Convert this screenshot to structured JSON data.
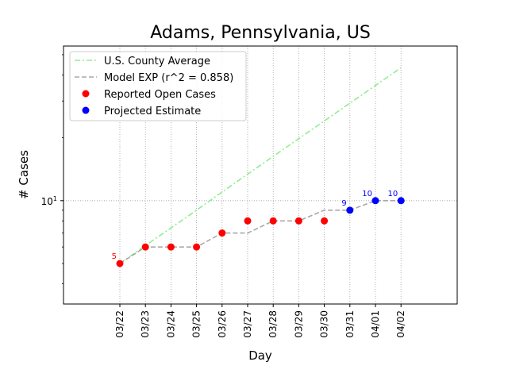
{
  "chart_data": {
    "type": "line",
    "title": "Adams, Pennsylvania, US",
    "xlabel": "Day",
    "ylabel": "# Cases",
    "yscale": "log",
    "ylim": [
      3.2,
      55
    ],
    "y_tick_label": "10",
    "y_tick_value": 10,
    "grid": true,
    "legend_position": "upper left",
    "categories": [
      "03/22",
      "03/23",
      "03/24",
      "03/25",
      "03/26",
      "03/27",
      "03/28",
      "03/29",
      "03/30",
      "03/31",
      "04/01",
      "04/02"
    ],
    "series": [
      {
        "name": "U.S. County Average",
        "style": "dash-dot",
        "color": "#90ee90",
        "values": [
          5,
          6.1,
          7.4,
          9.0,
          11.0,
          13.4,
          16.3,
          19.8,
          24.1,
          29.3,
          35.6,
          43.3
        ]
      },
      {
        "name": "Model EXP (r^2 = 0.858)",
        "style": "dashed",
        "color": "#a9a9a9",
        "values": [
          5,
          6,
          6,
          6,
          7,
          7,
          8,
          8,
          9,
          9,
          10,
          10
        ]
      },
      {
        "name": "Reported Open Cases",
        "style": "marker",
        "color": "#ff0000",
        "values": [
          5,
          6,
          6,
          6,
          7,
          8,
          8,
          8,
          8,
          null,
          null,
          null
        ]
      },
      {
        "name": "Projected Estimate",
        "style": "marker",
        "color": "#0000ff",
        "values": [
          null,
          null,
          null,
          null,
          null,
          null,
          null,
          null,
          null,
          9,
          10,
          10
        ]
      }
    ],
    "annotations": [
      {
        "category": "03/22",
        "text": "5",
        "color": "#ff0000"
      },
      {
        "category": "03/31",
        "text": "9",
        "color": "#0000ff"
      },
      {
        "category": "04/01",
        "text": "10",
        "color": "#0000ff"
      },
      {
        "category": "04/02",
        "text": "10",
        "color": "#0000ff"
      }
    ]
  }
}
